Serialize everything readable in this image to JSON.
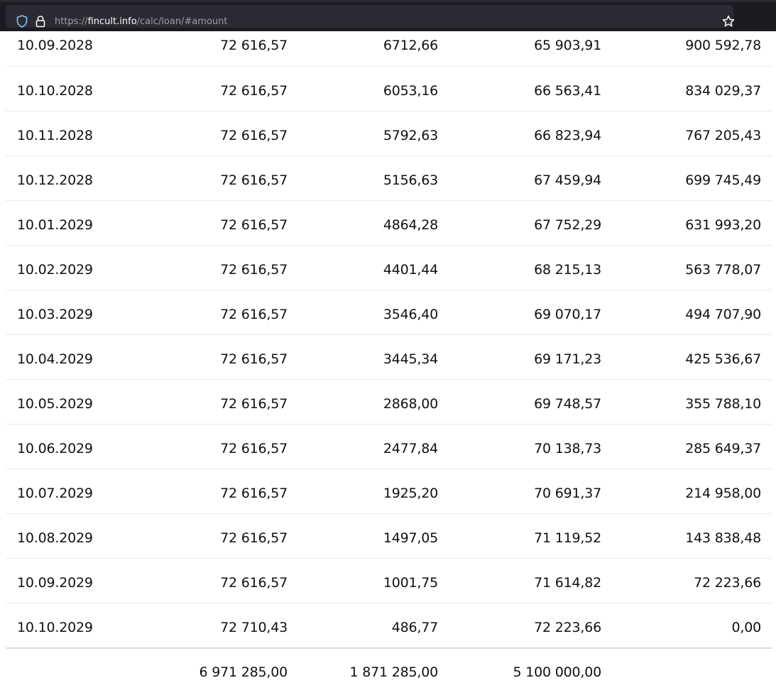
{
  "browser": {
    "url_prefix": "https://",
    "url_host": "fincult.info",
    "url_path": "/calc/loan/#amount"
  },
  "schedule": {
    "rows": [
      {
        "date": "10.09.2028",
        "payment": "72 616,57",
        "interest": "6712,66",
        "principal": "65 903,91",
        "balance": "900 592,78"
      },
      {
        "date": "10.10.2028",
        "payment": "72 616,57",
        "interest": "6053,16",
        "principal": "66 563,41",
        "balance": "834 029,37"
      },
      {
        "date": "10.11.2028",
        "payment": "72 616,57",
        "interest": "5792,63",
        "principal": "66 823,94",
        "balance": "767 205,43"
      },
      {
        "date": "10.12.2028",
        "payment": "72 616,57",
        "interest": "5156,63",
        "principal": "67 459,94",
        "balance": "699 745,49"
      },
      {
        "date": "10.01.2029",
        "payment": "72 616,57",
        "interest": "4864,28",
        "principal": "67 752,29",
        "balance": "631 993,20"
      },
      {
        "date": "10.02.2029",
        "payment": "72 616,57",
        "interest": "4401,44",
        "principal": "68 215,13",
        "balance": "563 778,07"
      },
      {
        "date": "10.03.2029",
        "payment": "72 616,57",
        "interest": "3546,40",
        "principal": "69 070,17",
        "balance": "494 707,90"
      },
      {
        "date": "10.04.2029",
        "payment": "72 616,57",
        "interest": "3445,34",
        "principal": "69 171,23",
        "balance": "425 536,67"
      },
      {
        "date": "10.05.2029",
        "payment": "72 616,57",
        "interest": "2868,00",
        "principal": "69 748,57",
        "balance": "355 788,10"
      },
      {
        "date": "10.06.2029",
        "payment": "72 616,57",
        "interest": "2477,84",
        "principal": "70 138,73",
        "balance": "285 649,37"
      },
      {
        "date": "10.07.2029",
        "payment": "72 616,57",
        "interest": "1925,20",
        "principal": "70 691,37",
        "balance": "214 958,00"
      },
      {
        "date": "10.08.2029",
        "payment": "72 616,57",
        "interest": "1497,05",
        "principal": "71 119,52",
        "balance": "143 838,48"
      },
      {
        "date": "10.09.2029",
        "payment": "72 616,57",
        "interest": "1001,75",
        "principal": "71 614,82",
        "balance": "72 223,66"
      },
      {
        "date": "10.10.2029",
        "payment": "72 710,43",
        "interest": "486,77",
        "principal": "72 223,66",
        "balance": "0,00"
      }
    ],
    "totals": {
      "payment": "6 971 285,00",
      "interest": "1 871 285,00",
      "principal": "5 100 000,00"
    }
  }
}
